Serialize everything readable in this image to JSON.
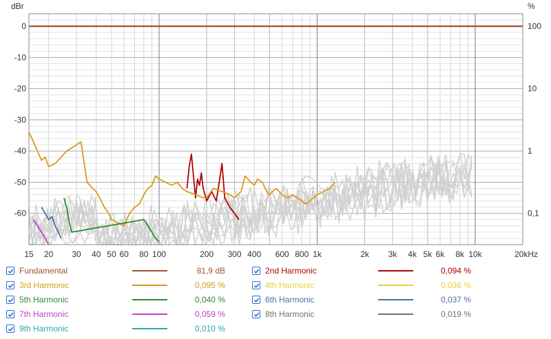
{
  "chart_data": {
    "type": "line",
    "y_left_unit": "dBr",
    "y_right_unit": "%",
    "x_ticks": [
      "15",
      "20",
      "30",
      "40",
      "50",
      "60",
      "80",
      "100",
      "200",
      "300",
      "400",
      "600",
      "800",
      "1k",
      "2k",
      "3k",
      "4k",
      "5k",
      "6k",
      "8k",
      "10k",
      "20kHz"
    ],
    "x_tick_values": [
      15,
      20,
      30,
      40,
      50,
      60,
      80,
      100,
      200,
      300,
      400,
      600,
      800,
      1000,
      2000,
      3000,
      4000,
      5000,
      6000,
      8000,
      10000,
      20000
    ],
    "y_ticks_left": [
      "0",
      "-10",
      "-20",
      "-30",
      "-40",
      "-50",
      "-60"
    ],
    "y_tick_values_left": [
      0,
      -10,
      -20,
      -30,
      -40,
      -50,
      -60
    ],
    "y_ticks_right": [
      "100",
      "10",
      "1",
      "0,1"
    ],
    "y_tick_values_right": [
      0,
      -20,
      -40,
      -60
    ],
    "xlim": [
      15,
      20000
    ],
    "ylim": [
      -70,
      4
    ],
    "x_scale": "log",
    "grid": true,
    "series": [
      {
        "name": "Fundamental",
        "color": "#a0522d",
        "x": [
          15,
          20000
        ],
        "y": [
          0,
          0
        ]
      },
      {
        "name": "2nd Harmonic",
        "color": "#b00000",
        "x": [
          150,
          155,
          160,
          165,
          170,
          175,
          180,
          185,
          190,
          200,
          215,
          230,
          240,
          250,
          260,
          280,
          300,
          320
        ],
        "y": [
          -52,
          -45,
          -41,
          -48,
          -55,
          -49,
          -51,
          -47,
          -52,
          -56,
          -53,
          -56,
          -50,
          -44,
          -55,
          -58,
          -60,
          -62
        ]
      },
      {
        "name": "3rd Harmonic",
        "color": "#d99a1c",
        "x": [
          15,
          16,
          17,
          18,
          19,
          20,
          22,
          24,
          26,
          28,
          30,
          32,
          35,
          38,
          40,
          42,
          45,
          48,
          50,
          55,
          60,
          65,
          70,
          75,
          80,
          85,
          90,
          95,
          100,
          110,
          120,
          130,
          140,
          150,
          170,
          190,
          200,
          220,
          250,
          280,
          300,
          330,
          350,
          380,
          400,
          420,
          450,
          480,
          500,
          520,
          550,
          600,
          650,
          700,
          750,
          800,
          850,
          900,
          950,
          1000,
          1100,
          1200,
          1300
        ],
        "y": [
          -34,
          -37,
          -40,
          -43,
          -42,
          -45,
          -44,
          -42,
          -40,
          -39,
          -38,
          -37,
          -50,
          -52,
          -53,
          -55,
          -58,
          -60,
          -62,
          -63,
          -64,
          -60,
          -58,
          -57,
          -54,
          -52,
          -51,
          -48,
          -49,
          -50,
          -51,
          -50,
          -52,
          -53,
          -54,
          -55,
          -55,
          -52,
          -53,
          -54,
          -55,
          -53,
          -48,
          -50,
          -51,
          -49,
          -50,
          -53,
          -54,
          -53,
          -52,
          -54,
          -55,
          -54,
          -55,
          -56,
          -57,
          -56,
          -55,
          -54,
          -53,
          -52,
          -50
        ]
      },
      {
        "name": "4th Harmonic",
        "color": "#e5d33a",
        "x": [],
        "y": []
      },
      {
        "name": "5th Harmonic",
        "color": "#2e8b2e",
        "x": [
          25,
          26,
          27,
          28,
          80,
          85,
          90,
          95,
          100
        ],
        "y": [
          -55,
          -58,
          -63,
          -66,
          -62,
          -64,
          -66,
          -68,
          -69
        ]
      },
      {
        "name": "6th Harmonic",
        "color": "#4a6fa5",
        "x": [
          18,
          19,
          20,
          21,
          22,
          23,
          24
        ],
        "y": [
          -58,
          -60,
          -62,
          -61,
          -64,
          -66,
          -68
        ]
      },
      {
        "name": "7th Harmonic",
        "color": "#c040c0",
        "x": [
          16,
          17,
          18,
          19,
          20
        ],
        "y": [
          -62,
          -64,
          -66,
          -68,
          -70
        ]
      },
      {
        "name": "8th Harmonic",
        "color": "#707070",
        "x": [],
        "y": []
      },
      {
        "name": "9th Harmonic",
        "color": "#2ba8a0",
        "x": [],
        "y": []
      }
    ]
  },
  "legend": [
    {
      "label": "Fundamental",
      "value": "81,9 dB",
      "color": "#a0522d",
      "checked": true
    },
    {
      "label": "2nd Harmonic",
      "value": "0,094 %",
      "color": "#b00000",
      "checked": true
    },
    {
      "label": "3rd Harmonic",
      "value": "0,095 %",
      "color": "#d99a1c",
      "checked": true
    },
    {
      "label": "4th Harmonic",
      "value": "0,036 %",
      "color": "#e5d33a",
      "checked": true
    },
    {
      "label": "5th Harmonic",
      "value": "0,040 %",
      "color": "#2e8b2e",
      "checked": true
    },
    {
      "label": "6th Harmonic",
      "value": "0,037 %",
      "color": "#4a6fa5",
      "checked": true
    },
    {
      "label": "7th Harmonic",
      "value": "0,059 %",
      "color": "#c040c0",
      "checked": true
    },
    {
      "label": "8th Harmonic",
      "value": "0,019 %",
      "color": "#707070",
      "checked": true
    },
    {
      "label": "9th Harmonic",
      "value": "0,010 %",
      "color": "#2ba8a0",
      "checked": true
    }
  ]
}
